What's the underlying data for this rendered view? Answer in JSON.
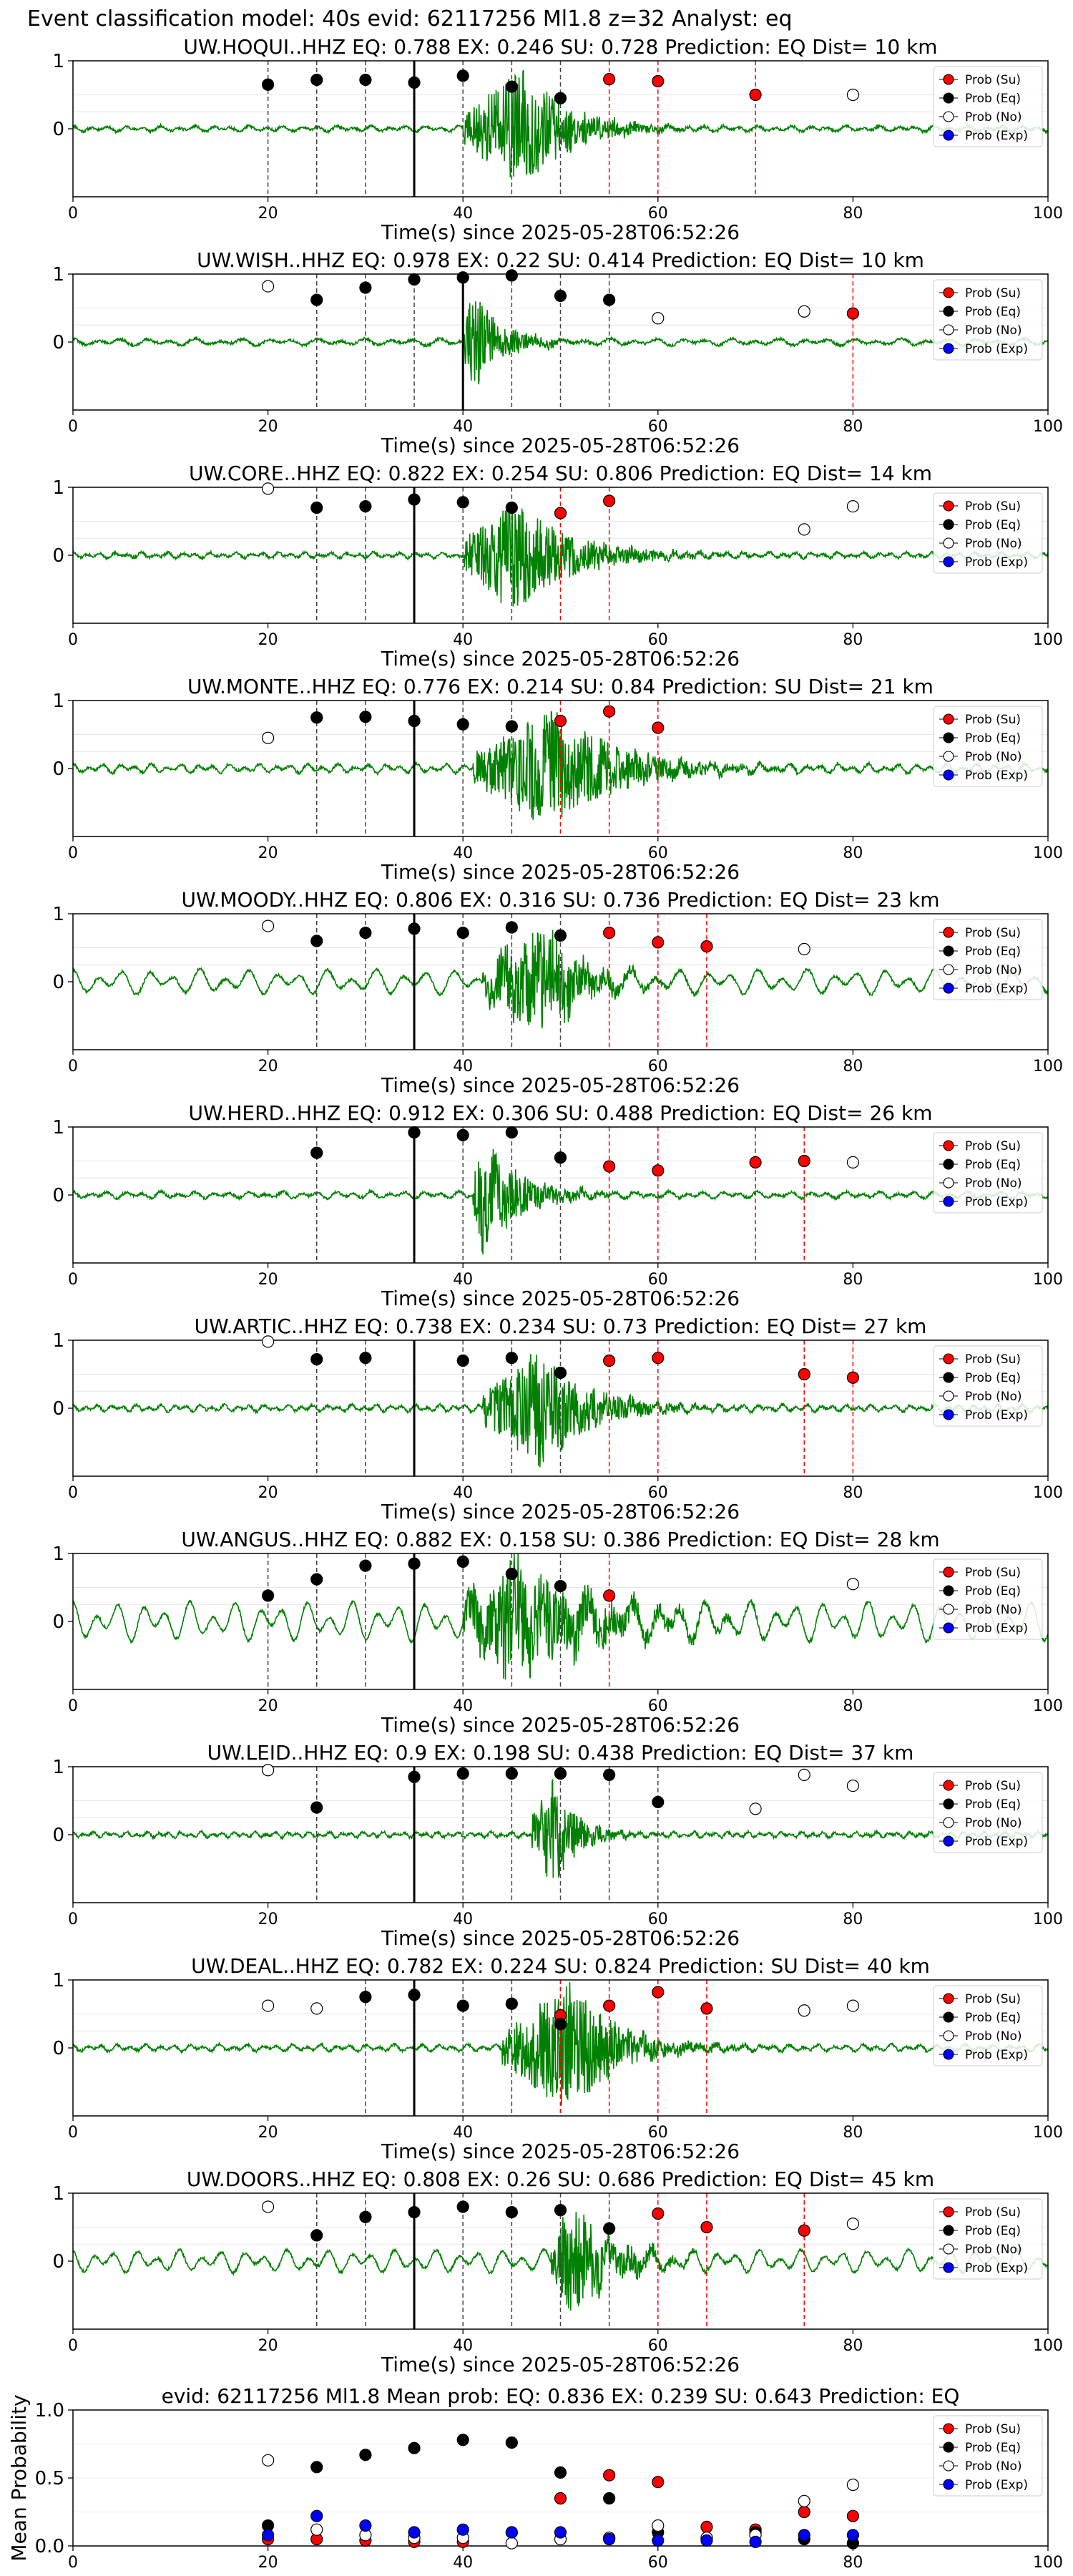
{
  "figure_title": "Event classification model: 40s evid: 62117256 Ml1.8 z=32 Analyst: eq",
  "colors": {
    "waveform": "#008000",
    "su": "#ff0000",
    "eq": "#000000",
    "no": "#ffffff",
    "exp": "#0000ff",
    "pick_line": "#444444",
    "su_line": "#ff0000"
  },
  "legend": [
    "Prob (Su)",
    "Prob (Eq)",
    "Prob (No)",
    "Prob (Exp)"
  ],
  "chart_data": [
    {
      "type": "scatter",
      "title": "UW.HOQUI..HHZ   EQ: 0.788  EX: 0.246  SU: 0.728   Prediction: EQ    Dist= 10 km",
      "xlabel": "Time(s) since 2025-05-28T06:52:26",
      "ylabel": "",
      "xlim": [
        0,
        100
      ],
      "ylim": [
        -1,
        1
      ],
      "yticks": [
        "1",
        "0"
      ],
      "xticks": [
        "0",
        "20",
        "40",
        "60",
        "80",
        "100"
      ],
      "pick_time": 35,
      "waveform": {
        "onset": 40,
        "peak": 46,
        "noise": 0.05,
        "amp": 0.9,
        "decay": 5,
        "period": 1.8,
        "seed": 11
      },
      "series": [
        {
          "name": "Prob (Su)",
          "x": [
            55,
            60,
            70
          ],
          "y": [
            0.73,
            0.7,
            0.5
          ]
        },
        {
          "name": "Prob (Eq)",
          "x": [
            20,
            25,
            30,
            35,
            40,
            45,
            50
          ],
          "y": [
            0.65,
            0.72,
            0.72,
            0.68,
            0.78,
            0.62,
            0.45
          ]
        },
        {
          "name": "Prob (No)",
          "x": [
            80
          ],
          "y": [
            0.5
          ]
        },
        {
          "name": "Prob (Exp)",
          "x": [],
          "y": []
        }
      ]
    },
    {
      "type": "scatter",
      "title": "UW.WISH..HHZ   EQ: 0.978  EX: 0.22  SU: 0.414   Prediction: EQ    Dist= 10 km",
      "xlabel": "Time(s) since 2025-05-28T06:52:26",
      "ylabel": "",
      "xlim": [
        0,
        100
      ],
      "ylim": [
        -1,
        1
      ],
      "yticks": [
        "1",
        "0"
      ],
      "xticks": [
        "0",
        "20",
        "40",
        "60",
        "80",
        "100"
      ],
      "pick_time": 40,
      "waveform": {
        "onset": 40,
        "peak": 41,
        "noise": 0.06,
        "amp": 0.8,
        "decay": 3,
        "period": 2.5,
        "seed": 22
      },
      "series": [
        {
          "name": "Prob (Su)",
          "x": [
            80
          ],
          "y": [
            0.42
          ]
        },
        {
          "name": "Prob (Eq)",
          "x": [
            25,
            30,
            35,
            40,
            45,
            50,
            55
          ],
          "y": [
            0.62,
            0.8,
            0.92,
            0.95,
            0.98,
            0.68,
            0.62
          ]
        },
        {
          "name": "Prob (No)",
          "x": [
            20,
            60,
            75
          ],
          "y": [
            0.82,
            0.35,
            0.45
          ]
        },
        {
          "name": "Prob (Exp)",
          "x": [],
          "y": []
        }
      ]
    },
    {
      "type": "scatter",
      "title": "UW.CORE..HHZ   EQ: 0.822  EX: 0.254  SU: 0.806   Prediction: EQ    Dist= 14 km",
      "xlabel": "Time(s) since 2025-05-28T06:52:26",
      "ylabel": "",
      "xlim": [
        0,
        100
      ],
      "ylim": [
        -1,
        1
      ],
      "yticks": [
        "1",
        "0"
      ],
      "xticks": [
        "0",
        "20",
        "40",
        "60",
        "80",
        "100"
      ],
      "pick_time": 35,
      "waveform": {
        "onset": 40,
        "peak": 45,
        "noise": 0.05,
        "amp": 0.85,
        "decay": 6,
        "period": 1.4,
        "seed": 33
      },
      "series": [
        {
          "name": "Prob (Su)",
          "x": [
            50,
            55
          ],
          "y": [
            0.62,
            0.8
          ]
        },
        {
          "name": "Prob (Eq)",
          "x": [
            25,
            30,
            35,
            40,
            45
          ],
          "y": [
            0.7,
            0.72,
            0.82,
            0.78,
            0.7
          ]
        },
        {
          "name": "Prob (No)",
          "x": [
            20,
            75,
            80
          ],
          "y": [
            0.98,
            0.38,
            0.72
          ]
        },
        {
          "name": "Prob (Exp)",
          "x": [],
          "y": []
        }
      ]
    },
    {
      "type": "scatter",
      "title": "UW.MONTE..HHZ   EQ: 0.776  EX: 0.214  SU: 0.84   Prediction: SU    Dist= 21 km",
      "xlabel": "Time(s) since 2025-05-28T06:52:26",
      "ylabel": "",
      "xlim": [
        0,
        100
      ],
      "ylim": [
        -1,
        1
      ],
      "yticks": [
        "1",
        "0"
      ],
      "xticks": [
        "0",
        "20",
        "40",
        "60",
        "80",
        "100"
      ],
      "pick_time": 35,
      "waveform": {
        "onset": 41,
        "peak": 49,
        "noise": 0.08,
        "amp": 0.9,
        "decay": 7,
        "period": 1.6,
        "seed": 44
      },
      "series": [
        {
          "name": "Prob (Su)",
          "x": [
            50,
            55,
            60
          ],
          "y": [
            0.7,
            0.84,
            0.6
          ]
        },
        {
          "name": "Prob (Eq)",
          "x": [
            25,
            30,
            35,
            40,
            45
          ],
          "y": [
            0.75,
            0.76,
            0.7,
            0.65,
            0.62
          ]
        },
        {
          "name": "Prob (No)",
          "x": [
            20
          ],
          "y": [
            0.45
          ]
        },
        {
          "name": "Prob (Exp)",
          "x": [],
          "y": []
        }
      ]
    },
    {
      "type": "scatter",
      "title": "UW.MOODY..HHZ   EQ: 0.806  EX: 0.316  SU: 0.736   Prediction: EQ    Dist= 23 km",
      "xlabel": "Time(s) since 2025-05-28T06:52:26",
      "ylabel": "",
      "xlim": [
        0,
        100
      ],
      "ylim": [
        -1,
        1
      ],
      "yticks": [
        "1",
        "0"
      ],
      "xticks": [
        "0",
        "20",
        "40",
        "60",
        "80",
        "100"
      ],
      "pick_time": 35,
      "waveform": {
        "onset": 42,
        "peak": 48,
        "noise": 0.22,
        "amp": 0.85,
        "decay": 4,
        "period": 2.6,
        "seed": 55
      },
      "series": [
        {
          "name": "Prob (Su)",
          "x": [
            55,
            60,
            65
          ],
          "y": [
            0.72,
            0.58,
            0.52
          ]
        },
        {
          "name": "Prob (Eq)",
          "x": [
            25,
            30,
            35,
            40,
            45,
            50
          ],
          "y": [
            0.6,
            0.72,
            0.78,
            0.72,
            0.8,
            0.68
          ]
        },
        {
          "name": "Prob (No)",
          "x": [
            20,
            75
          ],
          "y": [
            0.82,
            0.48
          ]
        },
        {
          "name": "Prob (Exp)",
          "x": [],
          "y": []
        }
      ]
    },
    {
      "type": "scatter",
      "title": "UW.HERD..HHZ   EQ: 0.912  EX: 0.306  SU: 0.488   Prediction: EQ    Dist= 26 km",
      "xlabel": "Time(s) since 2025-05-28T06:52:26",
      "ylabel": "",
      "xlim": [
        0,
        100
      ],
      "ylim": [
        -1,
        1
      ],
      "yticks": [
        "1",
        "0"
      ],
      "xticks": [
        "0",
        "20",
        "40",
        "60",
        "80",
        "100"
      ],
      "pick_time": 35,
      "waveform": {
        "onset": 41,
        "peak": 42,
        "noise": 0.06,
        "amp": 0.85,
        "decay": 4,
        "period": 1.8,
        "seed": 66
      },
      "series": [
        {
          "name": "Prob (Su)",
          "x": [
            55,
            60,
            70,
            75
          ],
          "y": [
            0.42,
            0.36,
            0.48,
            0.5
          ]
        },
        {
          "name": "Prob (Eq)",
          "x": [
            25,
            35,
            40,
            45,
            50
          ],
          "y": [
            0.62,
            0.92,
            0.88,
            0.92,
            0.55
          ]
        },
        {
          "name": "Prob (No)",
          "x": [
            80
          ],
          "y": [
            0.48
          ]
        },
        {
          "name": "Prob (Exp)",
          "x": [],
          "y": []
        }
      ]
    },
    {
      "type": "scatter",
      "title": "UW.ARTIC..HHZ   EQ: 0.738  EX: 0.234  SU: 0.73   Prediction: EQ    Dist= 27 km",
      "xlabel": "Time(s) since 2025-05-28T06:52:26",
      "ylabel": "",
      "xlim": [
        0,
        100
      ],
      "ylim": [
        -1,
        1
      ],
      "yticks": [
        "1",
        "0"
      ],
      "xticks": [
        "0",
        "20",
        "40",
        "60",
        "80",
        "100"
      ],
      "pick_time": 35,
      "waveform": {
        "onset": 42,
        "peak": 48,
        "noise": 0.06,
        "amp": 0.9,
        "decay": 5,
        "period": 1.3,
        "seed": 77
      },
      "series": [
        {
          "name": "Prob (Su)",
          "x": [
            55,
            60,
            75,
            80
          ],
          "y": [
            0.7,
            0.74,
            0.5,
            0.45
          ]
        },
        {
          "name": "Prob (Eq)",
          "x": [
            25,
            30,
            40,
            45,
            50
          ],
          "y": [
            0.72,
            0.74,
            0.7,
            0.74,
            0.52
          ]
        },
        {
          "name": "Prob (No)",
          "x": [
            20
          ],
          "y": [
            0.98
          ]
        },
        {
          "name": "Prob (Exp)",
          "x": [],
          "y": []
        }
      ]
    },
    {
      "type": "scatter",
      "title": "UW.ANGUS..HHZ   EQ: 0.882  EX: 0.158  SU: 0.386   Prediction: EQ    Dist= 28 km",
      "xlabel": "Time(s) since 2025-05-28T06:52:26",
      "ylabel": "",
      "xlim": [
        0,
        100
      ],
      "ylim": [
        -1,
        1
      ],
      "yticks": [
        "1",
        "0"
      ],
      "xticks": [
        "0",
        "20",
        "40",
        "60",
        "80",
        "100"
      ],
      "pick_time": 35,
      "waveform": {
        "onset": 40,
        "peak": 45,
        "noise": 0.35,
        "amp": 0.9,
        "decay": 8,
        "period": 2.4,
        "seed": 88
      },
      "series": [
        {
          "name": "Prob (Su)",
          "x": [
            55
          ],
          "y": [
            0.38
          ]
        },
        {
          "name": "Prob (Eq)",
          "x": [
            20,
            25,
            30,
            35,
            40,
            45,
            50
          ],
          "y": [
            0.38,
            0.62,
            0.82,
            0.85,
            0.88,
            0.7,
            0.52
          ]
        },
        {
          "name": "Prob (No)",
          "x": [
            80
          ],
          "y": [
            0.55
          ]
        },
        {
          "name": "Prob (Exp)",
          "x": [],
          "y": []
        }
      ]
    },
    {
      "type": "scatter",
      "title": "UW.LEID..HHZ   EQ: 0.9  EX: 0.198  SU: 0.438   Prediction: EQ    Dist= 37 km",
      "xlabel": "Time(s) since 2025-05-28T06:52:26",
      "ylabel": "",
      "xlim": [
        0,
        100
      ],
      "ylim": [
        -1,
        1
      ],
      "yticks": [
        "1",
        "0"
      ],
      "xticks": [
        "0",
        "20",
        "40",
        "60",
        "80",
        "100"
      ],
      "pick_time": 35,
      "waveform": {
        "onset": 47,
        "peak": 49,
        "noise": 0.05,
        "amp": 0.9,
        "decay": 2.5,
        "period": 1.1,
        "seed": 99
      },
      "series": [
        {
          "name": "Prob (Su)",
          "x": [],
          "y": []
        },
        {
          "name": "Prob (Eq)",
          "x": [
            25,
            35,
            40,
            45,
            50,
            55,
            60
          ],
          "y": [
            0.4,
            0.85,
            0.9,
            0.9,
            0.9,
            0.88,
            0.48
          ]
        },
        {
          "name": "Prob (No)",
          "x": [
            20,
            70,
            75,
            80
          ],
          "y": [
            0.95,
            0.38,
            0.88,
            0.72
          ]
        },
        {
          "name": "Prob (Exp)",
          "x": [],
          "y": []
        }
      ]
    },
    {
      "type": "scatter",
      "title": "UW.DEAL..HHZ   EQ: 0.782  EX: 0.224  SU: 0.824   Prediction: SU    Dist= 40 km",
      "xlabel": "Time(s) since 2025-05-28T06:52:26",
      "ylabel": "",
      "xlim": [
        0,
        100
      ],
      "ylim": [
        -1,
        1
      ],
      "yticks": [
        "1",
        "0"
      ],
      "xticks": [
        "0",
        "20",
        "40",
        "60",
        "80",
        "100"
      ],
      "pick_time": 35,
      "waveform": {
        "onset": 44,
        "peak": 51,
        "noise": 0.06,
        "amp": 0.95,
        "decay": 5,
        "period": 1.5,
        "seed": 111
      },
      "series": [
        {
          "name": "Prob (Su)",
          "x": [
            50,
            55,
            60,
            65
          ],
          "y": [
            0.48,
            0.62,
            0.82,
            0.58
          ]
        },
        {
          "name": "Prob (Eq)",
          "x": [
            30,
            35,
            40,
            45,
            50
          ],
          "y": [
            0.75,
            0.78,
            0.62,
            0.65,
            0.35
          ]
        },
        {
          "name": "Prob (No)",
          "x": [
            20,
            25,
            75,
            80
          ],
          "y": [
            0.62,
            0.58,
            0.55,
            0.62
          ]
        },
        {
          "name": "Prob (Exp)",
          "x": [],
          "y": []
        }
      ]
    },
    {
      "type": "scatter",
      "title": "UW.DOORS..HHZ   EQ: 0.808  EX: 0.26  SU: 0.686   Prediction: EQ    Dist= 45 km",
      "xlabel": "Time(s) since 2025-05-28T06:52:26",
      "ylabel": "",
      "xlim": [
        0,
        100
      ],
      "ylim": [
        -1,
        1
      ],
      "yticks": [
        "1",
        "0"
      ],
      "xticks": [
        "0",
        "20",
        "40",
        "60",
        "80",
        "100"
      ],
      "pick_time": 35,
      "waveform": {
        "onset": 49,
        "peak": 51,
        "noise": 0.2,
        "amp": 0.9,
        "decay": 4,
        "period": 2.2,
        "seed": 122
      },
      "series": [
        {
          "name": "Prob (Su)",
          "x": [
            60,
            65,
            75
          ],
          "y": [
            0.7,
            0.5,
            0.45
          ]
        },
        {
          "name": "Prob (Eq)",
          "x": [
            25,
            30,
            35,
            40,
            45,
            50,
            55
          ],
          "y": [
            0.38,
            0.65,
            0.72,
            0.8,
            0.72,
            0.75,
            0.48
          ]
        },
        {
          "name": "Prob (No)",
          "x": [
            20,
            80
          ],
          "y": [
            0.8,
            0.55
          ]
        },
        {
          "name": "Prob (Exp)",
          "x": [],
          "y": []
        }
      ]
    },
    {
      "type": "scatter",
      "title": "evid: 62117256  Ml1.8   Mean prob:   EQ: 0.836  EX: 0.239  SU: 0.643   Prediction: EQ",
      "xlabel": "",
      "ylabel": "Mean Probability",
      "xlim": [
        0,
        100
      ],
      "ylim": [
        0,
        1
      ],
      "yticks": [
        "1.0",
        "0.5",
        "0.0"
      ],
      "xticks": [
        "0",
        "20",
        "40",
        "60",
        "80",
        "100"
      ],
      "series": [
        {
          "name": "Prob (Su)",
          "x": [
            20,
            25,
            30,
            35,
            40,
            45,
            50,
            55,
            60,
            65,
            70,
            75,
            80
          ],
          "y": [
            0.05,
            0.05,
            0.04,
            0.03,
            0.03,
            0.1,
            0.35,
            0.52,
            0.47,
            0.14,
            0.12,
            0.25,
            0.22
          ]
        },
        {
          "name": "Prob (Eq)",
          "x": [
            20,
            25,
            30,
            35,
            40,
            45,
            50,
            55,
            60,
            65,
            70,
            75,
            80
          ],
          "y": [
            0.15,
            0.58,
            0.67,
            0.72,
            0.78,
            0.76,
            0.54,
            0.35,
            0.1,
            0.05,
            0.1,
            0.05,
            0.02
          ]
        },
        {
          "name": "Prob (No)",
          "x": [
            20,
            25,
            30,
            35,
            40,
            45,
            50,
            55,
            60,
            65,
            70,
            75,
            80
          ],
          "y": [
            0.63,
            0.12,
            0.08,
            0.06,
            0.06,
            0.02,
            0.05,
            0.06,
            0.15,
            0.06,
            0.08,
            0.33,
            0.45
          ]
        },
        {
          "name": "Prob (Exp)",
          "x": [
            20,
            25,
            30,
            35,
            40,
            45,
            50,
            55,
            60,
            65,
            70,
            75,
            80
          ],
          "y": [
            0.08,
            0.22,
            0.15,
            0.1,
            0.12,
            0.1,
            0.1,
            0.05,
            0.04,
            0.04,
            0.03,
            0.08,
            0.08
          ]
        }
      ]
    }
  ]
}
